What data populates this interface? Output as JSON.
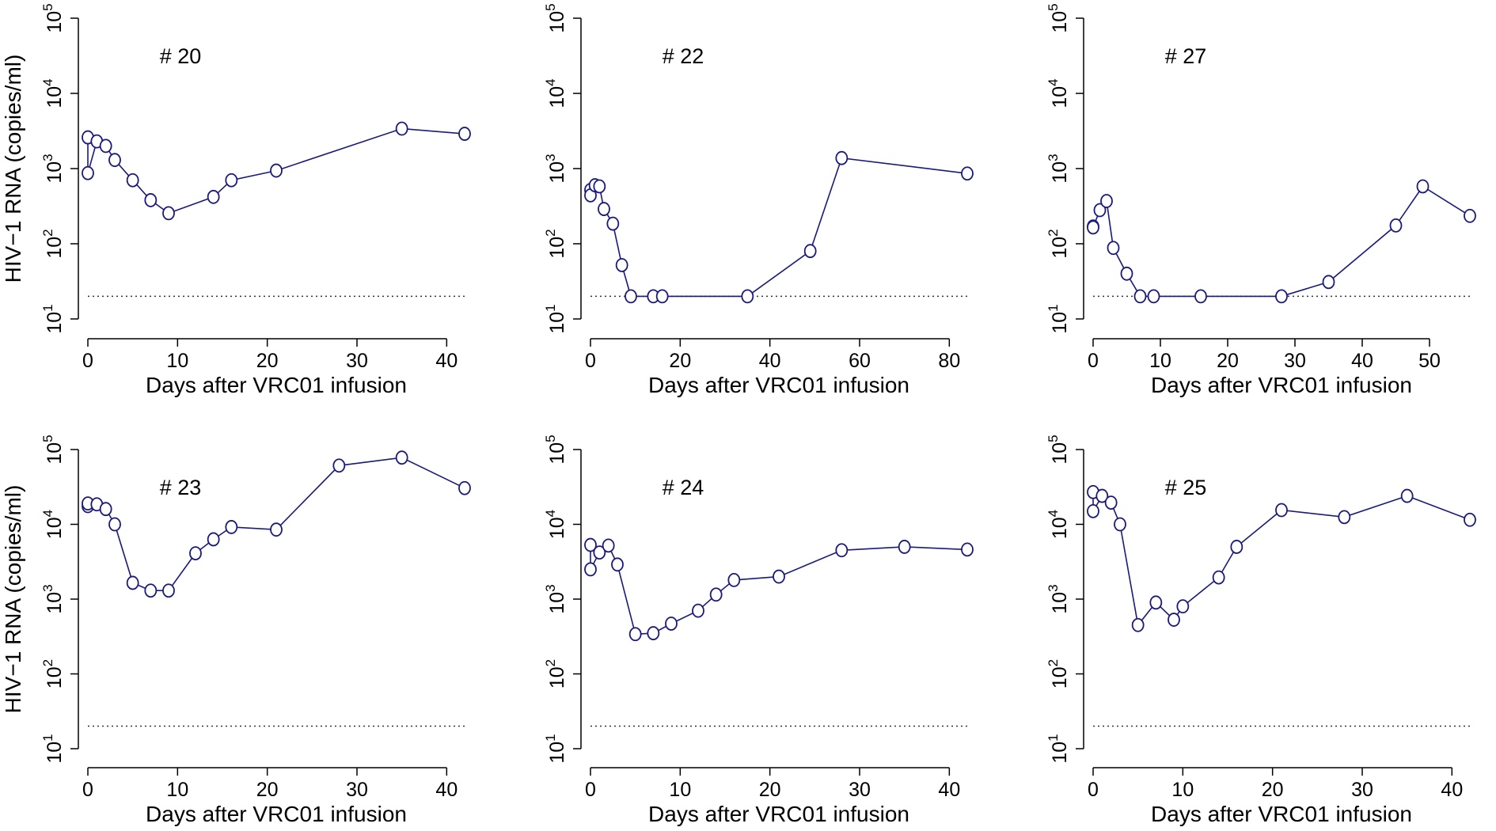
{
  "figure": {
    "line_color": "#1a1a7a",
    "marker_color": "#1a1a7a",
    "threshold_color": "#333333"
  },
  "chart_data": [
    {
      "type": "line",
      "title": "# 20",
      "xlabel": "Days after VRC01 infusion",
      "ylabel": "HIV−1 RNA (copies/ml)",
      "yscale": "log10",
      "xlim": [
        0,
        42
      ],
      "ylim_exp": [
        1,
        5
      ],
      "xticks": [
        0,
        10,
        20,
        30,
        40
      ],
      "yticks_exp": [
        1,
        2,
        3,
        4,
        5
      ],
      "threshold": 20,
      "x": [
        0,
        0,
        1,
        2,
        3,
        5,
        7,
        9,
        14,
        16,
        21,
        35,
        42
      ],
      "y": [
        2600,
        870,
        2300,
        2000,
        1300,
        700,
        380,
        255,
        420,
        700,
        940,
        3400,
        2900
      ]
    },
    {
      "type": "line",
      "title": "# 22",
      "xlabel": "Days after VRC01 infusion",
      "ylabel": "",
      "yscale": "log10",
      "xlim": [
        0,
        84
      ],
      "ylim_exp": [
        1,
        5
      ],
      "xticks": [
        0,
        20,
        40,
        60,
        80
      ],
      "yticks_exp": [
        1,
        2,
        3,
        4,
        5
      ],
      "threshold": 20,
      "x": [
        0,
        0,
        1,
        2,
        3,
        5,
        7,
        9,
        14,
        16,
        35,
        49,
        56,
        84
      ],
      "y": [
        520,
        440,
        600,
        580,
        290,
        185,
        52,
        20,
        20,
        20,
        20,
        80,
        1380,
        860
      ]
    },
    {
      "type": "line",
      "title": "# 27",
      "xlabel": "Days after VRC01 infusion",
      "ylabel": "",
      "yscale": "log10",
      "xlim": [
        0,
        56
      ],
      "ylim_exp": [
        1,
        5
      ],
      "xticks": [
        0,
        10,
        20,
        30,
        40,
        50
      ],
      "yticks_exp": [
        1,
        2,
        3,
        4,
        5
      ],
      "threshold": 20,
      "x": [
        0,
        0,
        1,
        2,
        3,
        5,
        7,
        9,
        16,
        28,
        35,
        45,
        49,
        56
      ],
      "y": [
        170,
        165,
        280,
        370,
        88,
        40,
        20,
        20,
        20,
        20,
        31,
        175,
        580,
        235
      ]
    },
    {
      "type": "line",
      "title": "# 23",
      "xlabel": "Days after VRC01 infusion",
      "ylabel": "HIV−1 RNA (copies/ml)",
      "yscale": "log10",
      "xlim": [
        0,
        42
      ],
      "ylim_exp": [
        1,
        5
      ],
      "xticks": [
        0,
        10,
        20,
        30,
        40
      ],
      "yticks_exp": [
        1,
        2,
        3,
        4,
        5
      ],
      "threshold": 20,
      "x": [
        0,
        0,
        1,
        2,
        3,
        5,
        7,
        9,
        12,
        14,
        16,
        21,
        28,
        35,
        42
      ],
      "y": [
        17500,
        19000,
        18500,
        16000,
        10000,
        1650,
        1300,
        1300,
        4100,
        6300,
        9200,
        8500,
        61000,
        78000,
        30500
      ]
    },
    {
      "type": "line",
      "title": "# 24",
      "xlabel": "Days after VRC01 infusion",
      "ylabel": "",
      "yscale": "log10",
      "xlim": [
        0,
        42
      ],
      "ylim_exp": [
        1,
        5
      ],
      "xticks": [
        0,
        10,
        20,
        30,
        40
      ],
      "yticks_exp": [
        1,
        2,
        3,
        4,
        5
      ],
      "threshold": 20,
      "x": [
        0,
        0,
        1,
        2,
        3,
        5,
        7,
        9,
        12,
        14,
        16,
        21,
        28,
        35,
        42
      ],
      "y": [
        5300,
        2500,
        4200,
        5200,
        2900,
        340,
        350,
        470,
        700,
        1150,
        1800,
        2000,
        4500,
        5000,
        4600
      ]
    },
    {
      "type": "line",
      "title": "# 25",
      "xlabel": "Days after VRC01 infusion",
      "ylabel": "",
      "yscale": "log10",
      "xlim": [
        0,
        42
      ],
      "ylim_exp": [
        1,
        5
      ],
      "xticks": [
        0,
        10,
        20,
        30,
        40
      ],
      "yticks_exp": [
        1,
        2,
        3,
        4,
        5
      ],
      "threshold": 20,
      "x": [
        0,
        0,
        1,
        2,
        3,
        5,
        7,
        9,
        10,
        14,
        16,
        21,
        28,
        35,
        42
      ],
      "y": [
        27000,
        15000,
        24000,
        19500,
        10000,
        450,
        900,
        530,
        800,
        1950,
        5000,
        15500,
        12500,
        24000,
        11500
      ]
    }
  ]
}
